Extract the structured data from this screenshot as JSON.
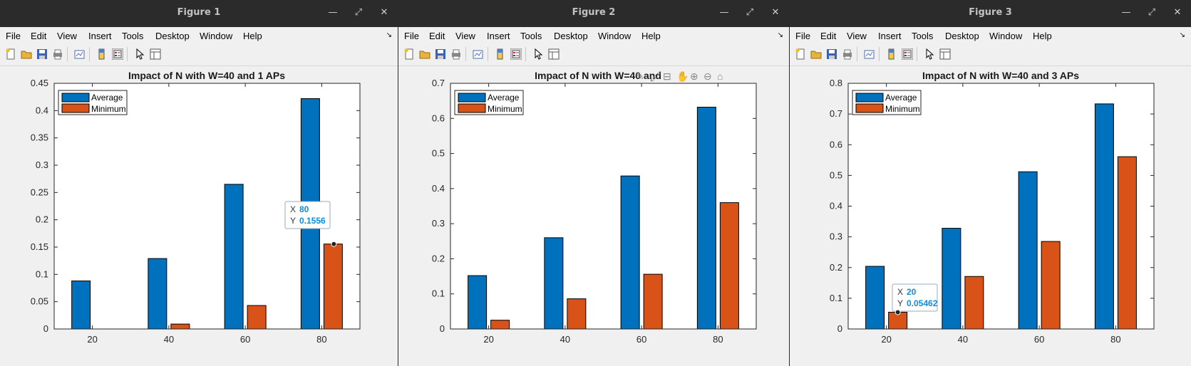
{
  "menu": [
    "File",
    "Edit",
    "View",
    "Insert",
    "Tools",
    "Desktop",
    "Window",
    "Help"
  ],
  "legend": {
    "average": "Average",
    "minimum": "Minimum"
  },
  "colors": {
    "average": "#0072bd",
    "minimum": "#d95319"
  },
  "figures": [
    {
      "window_title": "Figure 1",
      "axes_title": "Impact of N with W=40 and 1 APs",
      "datatip": {
        "x_label": "X",
        "x_value": "80",
        "y_label": "Y",
        "y_value": "0.1556"
      }
    },
    {
      "window_title": "Figure 2",
      "axes_title": "Impact of N with W=40 and"
    },
    {
      "window_title": "Figure 3",
      "axes_title": "Impact of N with W=40 and 3 APs",
      "datatip": {
        "x_label": "X",
        "x_value": "20",
        "y_label": "Y",
        "y_value": "0.05462"
      }
    }
  ],
  "chart_data": [
    {
      "type": "bar",
      "title": "Impact of N with W=40 and 1 APs",
      "categories": [
        20,
        40,
        60,
        80
      ],
      "series": [
        {
          "name": "Average",
          "values": [
            0.088,
            0.129,
            0.265,
            0.422
          ]
        },
        {
          "name": "Minimum",
          "values": [
            0,
            0.009,
            0.043,
            0.1556
          ]
        }
      ],
      "ylim": [
        0,
        0.45
      ],
      "yticks": [
        0,
        0.05,
        0.1,
        0.15,
        0.2,
        0.25,
        0.3,
        0.35,
        0.4,
        0.45
      ],
      "ytick_labels": [
        "0",
        "0.05",
        "0.1",
        "0.15",
        "0.2",
        "0.25",
        "0.3",
        "0.35",
        "0.4",
        "0.45"
      ],
      "legend_position": "top-left",
      "grid": false
    },
    {
      "type": "bar",
      "title": "Impact of N with W=40 and",
      "categories": [
        20,
        40,
        60,
        80
      ],
      "series": [
        {
          "name": "Average",
          "values": [
            0.152,
            0.26,
            0.436,
            0.632
          ]
        },
        {
          "name": "Minimum",
          "values": [
            0.025,
            0.086,
            0.156,
            0.36
          ]
        }
      ],
      "ylim": [
        0,
        0.7
      ],
      "yticks": [
        0,
        0.1,
        0.2,
        0.3,
        0.4,
        0.5,
        0.6,
        0.7
      ],
      "ytick_labels": [
        "0",
        "0.1",
        "0.2",
        "0.3",
        "0.4",
        "0.5",
        "0.6",
        "0.7"
      ],
      "legend_position": "top-left",
      "grid": false
    },
    {
      "type": "bar",
      "title": "Impact of N with W=40 and 3 APs",
      "categories": [
        20,
        40,
        60,
        80
      ],
      "series": [
        {
          "name": "Average",
          "values": [
            0.204,
            0.328,
            0.512,
            0.733
          ]
        },
        {
          "name": "Minimum",
          "values": [
            0.05462,
            0.171,
            0.285,
            0.561
          ]
        }
      ],
      "ylim": [
        0,
        0.8
      ],
      "yticks": [
        0,
        0.1,
        0.2,
        0.3,
        0.4,
        0.5,
        0.6,
        0.7,
        0.8
      ],
      "ytick_labels": [
        "0",
        "0.1",
        "0.2",
        "0.3",
        "0.4",
        "0.5",
        "0.6",
        "0.7",
        "0.8"
      ],
      "legend_position": "top-left",
      "grid": false
    }
  ]
}
